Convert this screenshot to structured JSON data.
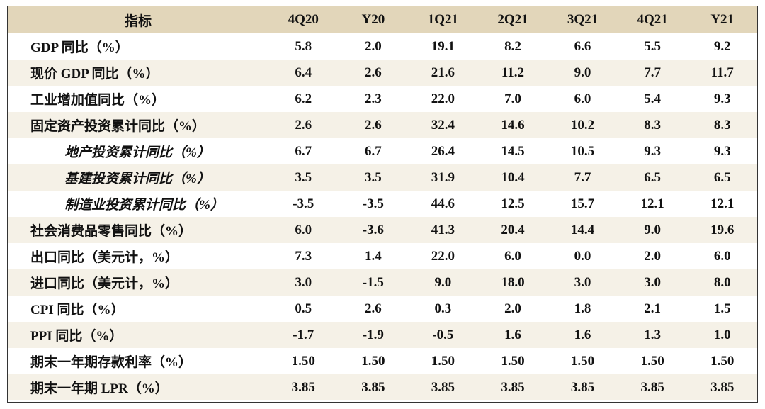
{
  "table": {
    "headers": [
      "指标",
      "4Q20",
      "Y20",
      "1Q21",
      "2Q21",
      "3Q21",
      "4Q21",
      "Y21"
    ],
    "rows": [
      {
        "label": "GDP 同比（%）",
        "sub": false,
        "values": [
          "5.8",
          "2.0",
          "19.1",
          "8.2",
          "6.6",
          "5.5",
          "9.2"
        ]
      },
      {
        "label": "现价 GDP 同比（%）",
        "sub": false,
        "values": [
          "6.4",
          "2.6",
          "21.6",
          "11.2",
          "9.0",
          "7.7",
          "11.7"
        ]
      },
      {
        "label": "工业增加值同比（%）",
        "sub": false,
        "values": [
          "6.2",
          "2.3",
          "22.0",
          "7.0",
          "6.0",
          "5.4",
          "9.3"
        ]
      },
      {
        "label": "固定资产投资累计同比（%）",
        "sub": false,
        "values": [
          "2.6",
          "2.6",
          "32.4",
          "14.6",
          "10.2",
          "8.3",
          "8.3"
        ]
      },
      {
        "label": "地产投资累计同比（%）",
        "sub": true,
        "values": [
          "6.7",
          "6.7",
          "26.4",
          "14.5",
          "10.5",
          "9.3",
          "9.3"
        ]
      },
      {
        "label": "基建投资累计同比（%）",
        "sub": true,
        "values": [
          "3.5",
          "3.5",
          "31.9",
          "10.4",
          "7.7",
          "6.5",
          "6.5"
        ]
      },
      {
        "label": "制造业投资累计同比（%）",
        "sub": true,
        "values": [
          "-3.5",
          "-3.5",
          "44.6",
          "12.5",
          "15.7",
          "12.1",
          "12.1"
        ]
      },
      {
        "label": "社会消费品零售同比（%）",
        "sub": false,
        "values": [
          "6.0",
          "-3.6",
          "41.3",
          "20.4",
          "14.4",
          "9.0",
          "19.6"
        ]
      },
      {
        "label": "出口同比（美元计，%）",
        "sub": false,
        "values": [
          "7.3",
          "1.4",
          "22.0",
          "6.0",
          "0.0",
          "2.0",
          "6.0"
        ]
      },
      {
        "label": "进口同比（美元计，%）",
        "sub": false,
        "values": [
          "3.0",
          "-1.5",
          "9.0",
          "18.0",
          "3.0",
          "3.0",
          "8.0"
        ]
      },
      {
        "label": "CPI 同比（%）",
        "sub": false,
        "values": [
          "0.5",
          "2.6",
          "0.3",
          "2.0",
          "1.8",
          "2.1",
          "1.5"
        ]
      },
      {
        "label": "PPI 同比（%）",
        "sub": false,
        "values": [
          "-1.7",
          "-1.9",
          "-0.5",
          "1.6",
          "1.6",
          "1.3",
          "1.0"
        ]
      },
      {
        "label": "期末一年期存款利率（%）",
        "sub": false,
        "values": [
          "1.50",
          "1.50",
          "1.50",
          "1.50",
          "1.50",
          "1.50",
          "1.50"
        ]
      },
      {
        "label": "期末一年期 LPR（%）",
        "sub": false,
        "values": [
          "3.85",
          "3.85",
          "3.85",
          "3.85",
          "3.85",
          "3.85",
          "3.85"
        ]
      }
    ]
  }
}
